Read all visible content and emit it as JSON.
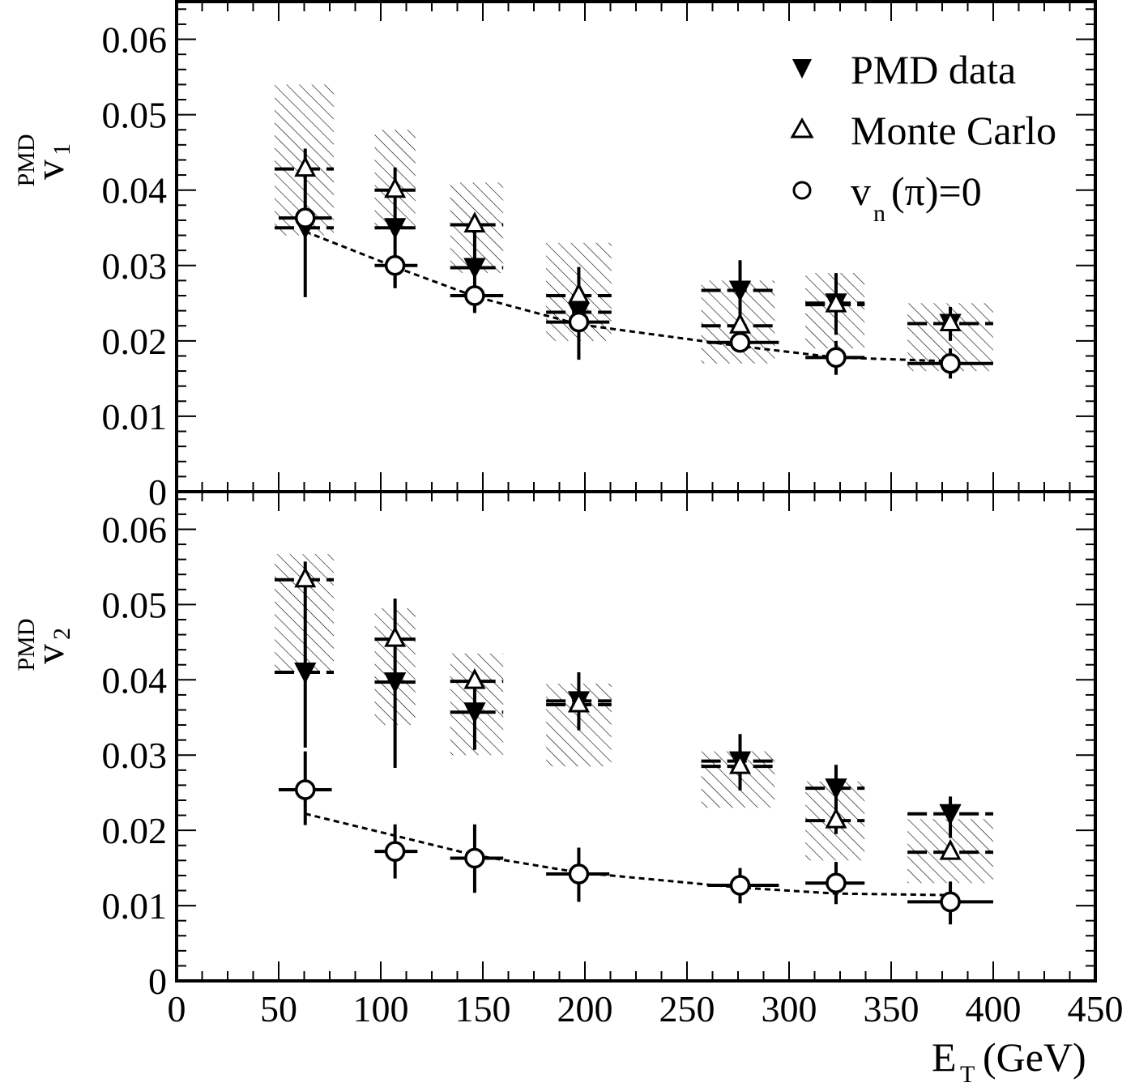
{
  "chart_data": [
    {
      "type": "scatter",
      "panel": "top",
      "ylabel": "v",
      "ylabel_subscript": "1",
      "ylabel_superscript": "PMD",
      "ylim": [
        0,
        0.065
      ],
      "xlim": [
        0,
        450
      ],
      "y_ticks": [
        "0",
        "0.01",
        "0.02",
        "0.03",
        "0.04",
        "0.05",
        "0.06"
      ],
      "legend": {
        "placement": "top-right",
        "entries": [
          {
            "label": "PMD data",
            "symbol": "filled-down-triangle"
          },
          {
            "label": "Monte Carlo",
            "symbol": "open-up-triangle"
          },
          {
            "label_main": "v",
            "label_sub": "n",
            "label_rest": "(π)=0",
            "symbol": "open-circle"
          }
        ]
      },
      "bands": [
        {
          "x0": 48,
          "x1": 77,
          "y0": 0.034,
          "y1": 0.054
        },
        {
          "x0": 97,
          "x1": 117,
          "y0": 0.035,
          "y1": 0.048
        },
        {
          "x0": 134,
          "x1": 160,
          "y0": 0.029,
          "y1": 0.041
        },
        {
          "x0": 181,
          "x1": 213,
          "y0": 0.02,
          "y1": 0.033
        },
        {
          "x0": 257,
          "x1": 293,
          "y0": 0.017,
          "y1": 0.028
        },
        {
          "x0": 308,
          "x1": 337,
          "y0": 0.019,
          "y1": 0.029
        },
        {
          "x0": 358,
          "x1": 400,
          "y0": 0.016,
          "y1": 0.025
        }
      ],
      "series": [
        {
          "name": "PMD data",
          "marker": "down-triangle",
          "x": [
            63,
            107,
            146,
            197,
            276,
            323,
            379
          ],
          "y": [
            0.035,
            0.035,
            0.0297,
            0.0238,
            0.0267,
            0.025,
            0.0223
          ],
          "yerr_low": [
            0.0258,
            0.027,
            0.024,
            0.0175,
            0.0225,
            0.0208,
            0.02
          ],
          "yerr_high": [
            0.0455,
            0.043,
            0.035,
            0.0298,
            0.0307,
            0.029,
            0.0245
          ],
          "xerr_low": [
            48,
            97,
            134,
            181,
            257,
            308,
            358
          ],
          "xerr_high": [
            77,
            117,
            160,
            213,
            293,
            337,
            400
          ]
        },
        {
          "name": "Monte Carlo",
          "marker": "up-triangle",
          "x": [
            63,
            107,
            146,
            197,
            276,
            323,
            379
          ],
          "y": [
            0.0428,
            0.04,
            0.0354,
            0.026,
            0.022,
            0.0248,
            0.0223
          ],
          "xerr_low": [
            48,
            97,
            134,
            181,
            257,
            308,
            358
          ],
          "xerr_high": [
            77,
            117,
            160,
            213,
            293,
            337,
            400
          ]
        },
        {
          "name": "v_n(π)=0",
          "marker": "circle",
          "x": [
            63,
            107,
            146,
            197,
            276,
            323,
            379
          ],
          "y": [
            0.0363,
            0.03,
            0.026,
            0.0225,
            0.0198,
            0.0178,
            0.017
          ],
          "yerr_low": [
            0.0363,
            0.027,
            0.0237,
            0.0225,
            0.0198,
            0.0155,
            0.015
          ],
          "yerr_high": [
            0.0363,
            0.03,
            0.026,
            0.0225,
            0.0198,
            0.02,
            0.019
          ],
          "xerr_low": [
            50,
            97,
            134,
            181,
            260,
            308,
            358
          ],
          "xerr_high": [
            76,
            118,
            160,
            212,
            295,
            337,
            400
          ]
        }
      ],
      "fit_curve": {
        "x": [
          63,
          107,
          146,
          197,
          276,
          323,
          379
        ],
        "y": [
          0.0345,
          0.0298,
          0.0259,
          0.0222,
          0.0193,
          0.0178,
          0.0173
        ]
      }
    },
    {
      "type": "scatter",
      "panel": "bottom",
      "ylabel": "v",
      "ylabel_subscript": "2",
      "ylabel_superscript": "PMD",
      "xlabel": "E",
      "xlabel_subscript": "T",
      "xlabel_rest": "(GeV)",
      "ylim": [
        0,
        0.065
      ],
      "xlim": [
        0,
        450
      ],
      "y_ticks": [
        "0",
        "0.01",
        "0.02",
        "0.03",
        "0.04",
        "0.05",
        "0.06"
      ],
      "x_ticks": [
        "0",
        "50",
        "100",
        "150",
        "200",
        "250",
        "300",
        "350",
        "400",
        "450"
      ],
      "bands": [
        {
          "x0": 48,
          "x1": 77,
          "y0": 0.041,
          "y1": 0.0567
        },
        {
          "x0": 97,
          "x1": 117,
          "y0": 0.034,
          "y1": 0.0495
        },
        {
          "x0": 134,
          "x1": 160,
          "y0": 0.03,
          "y1": 0.0435
        },
        {
          "x0": 181,
          "x1": 213,
          "y0": 0.0285,
          "y1": 0.0395
        },
        {
          "x0": 257,
          "x1": 293,
          "y0": 0.023,
          "y1": 0.0305
        },
        {
          "x0": 308,
          "x1": 337,
          "y0": 0.016,
          "y1": 0.0265
        },
        {
          "x0": 358,
          "x1": 400,
          "y0": 0.013,
          "y1": 0.0215
        }
      ],
      "series": [
        {
          "name": "PMD data",
          "marker": "down-triangle",
          "x": [
            63,
            107,
            146,
            197,
            276,
            323,
            379
          ],
          "y": [
            0.041,
            0.0397,
            0.0357,
            0.0372,
            0.0292,
            0.0256,
            0.0222
          ],
          "yerr_low": [
            0.031,
            0.0283,
            0.0307,
            0.0333,
            0.0253,
            0.0195,
            0.019
          ],
          "yerr_high": [
            0.0557,
            0.0508,
            0.0408,
            0.041,
            0.0328,
            0.0287,
            0.0245
          ],
          "xerr_low": [
            48,
            97,
            134,
            181,
            257,
            308,
            358
          ],
          "xerr_high": [
            77,
            117,
            160,
            213,
            293,
            337,
            400
          ]
        },
        {
          "name": "Monte Carlo",
          "marker": "up-triangle",
          "x": [
            63,
            107,
            146,
            197,
            276,
            323,
            379
          ],
          "y": [
            0.0533,
            0.0454,
            0.0398,
            0.0367,
            0.0285,
            0.0213,
            0.0171
          ],
          "xerr_low": [
            48,
            97,
            134,
            181,
            257,
            308,
            358
          ],
          "xerr_high": [
            77,
            117,
            160,
            213,
            293,
            337,
            400
          ]
        },
        {
          "name": "v_n(π)=0",
          "marker": "circle",
          "x": [
            63,
            107,
            146,
            197,
            276,
            323,
            379
          ],
          "y": [
            0.0254,
            0.0172,
            0.0163,
            0.0142,
            0.0127,
            0.013,
            0.0105
          ],
          "yerr_low": [
            0.0207,
            0.0136,
            0.0117,
            0.0105,
            0.0103,
            0.0102,
            0.0075
          ],
          "yerr_high": [
            0.0305,
            0.0208,
            0.0208,
            0.0177,
            0.015,
            0.0158,
            0.0132
          ],
          "xerr_low": [
            50,
            97,
            134,
            181,
            260,
            308,
            358
          ],
          "xerr_high": [
            76,
            118,
            160,
            212,
            295,
            337,
            400
          ]
        }
      ],
      "fit_curve": {
        "x": [
          63,
          107,
          146,
          197,
          276,
          323,
          379
        ],
        "y": [
          0.0222,
          0.0193,
          0.0167,
          0.0144,
          0.0124,
          0.0116,
          0.0114
        ]
      }
    }
  ]
}
